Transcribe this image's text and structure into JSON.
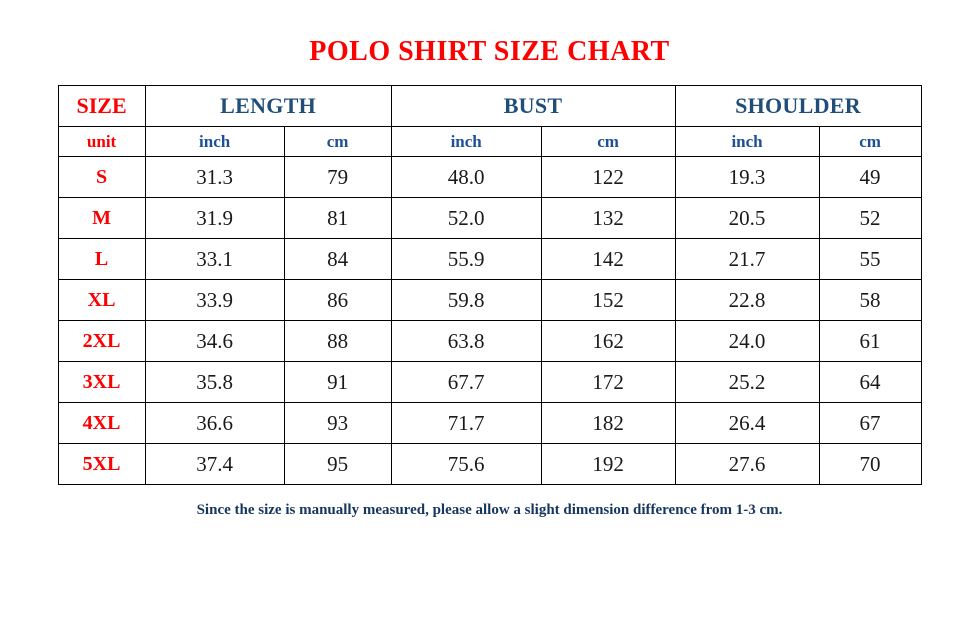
{
  "title": "POLO SHIRT SIZE CHART",
  "footnote": "Since the size is manually measured, please allow a slight dimension difference from 1-3 cm.",
  "table": {
    "size_header": "SIZE",
    "group_headers": [
      "LENGTH",
      "BUST",
      "SHOULDER"
    ],
    "unit_label": "unit",
    "unit_row": [
      "inch",
      "cm",
      "inch",
      "cm",
      "inch",
      "cm"
    ],
    "rows": [
      {
        "size": "S",
        "values": [
          "31.3",
          "79",
          "48.0",
          "122",
          "19.3",
          "49"
        ]
      },
      {
        "size": "M",
        "values": [
          "31.9",
          "81",
          "52.0",
          "132",
          "20.5",
          "52"
        ]
      },
      {
        "size": "L",
        "values": [
          "33.1",
          "84",
          "55.9",
          "142",
          "21.7",
          "55"
        ]
      },
      {
        "size": "XL",
        "values": [
          "33.9",
          "86",
          "59.8",
          "152",
          "22.8",
          "58"
        ]
      },
      {
        "size": "2XL",
        "values": [
          "34.6",
          "88",
          "63.8",
          "162",
          "24.0",
          "61"
        ]
      },
      {
        "size": "3XL",
        "values": [
          "35.8",
          "91",
          "67.7",
          "172",
          "25.2",
          "64"
        ]
      },
      {
        "size": "4XL",
        "values": [
          "36.6",
          "93",
          "71.7",
          "182",
          "26.4",
          "67"
        ]
      },
      {
        "size": "5XL",
        "values": [
          "37.4",
          "95",
          "75.6",
          "192",
          "27.6",
          "70"
        ]
      }
    ]
  },
  "colors": {
    "title_red": "#FF0000",
    "header_blue": "#1F4E79",
    "unit_blue": "#1E5096",
    "data_text": "#1A1A1A",
    "border": "#000000",
    "footnote_navy": "#17365D"
  }
}
